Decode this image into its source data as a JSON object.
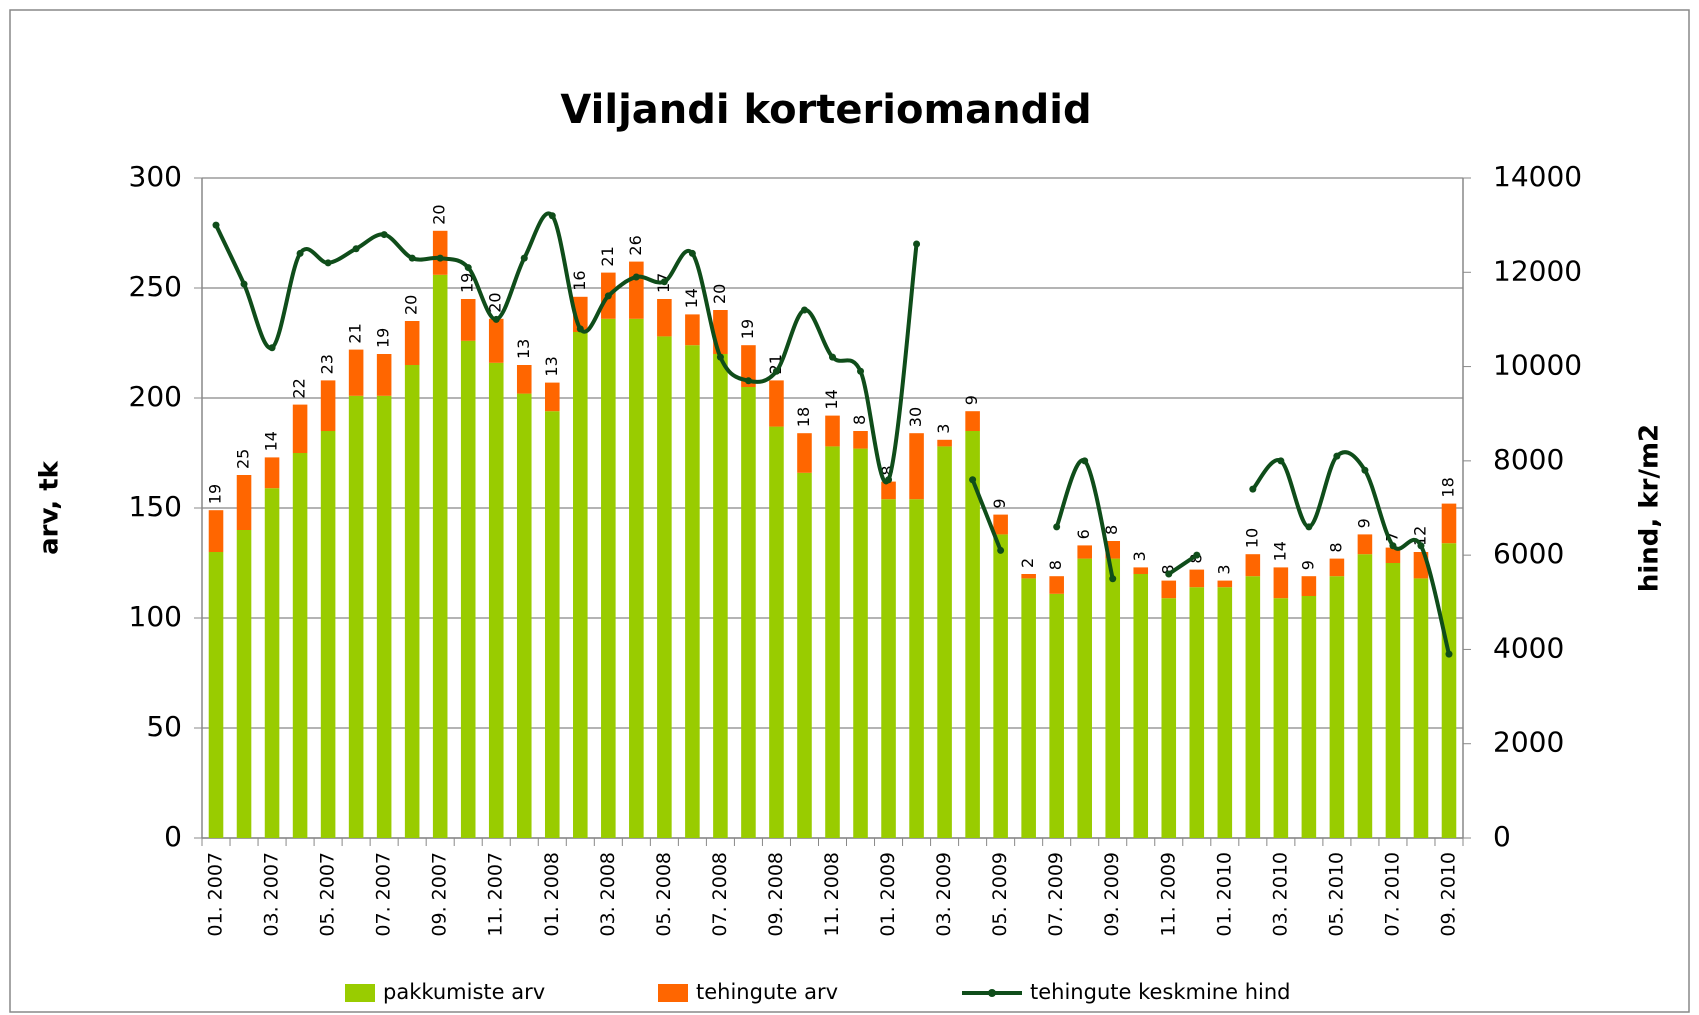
{
  "chart_data": {
    "type": "bar",
    "title": "Viljandi korteriomandid",
    "y_label": "arv, tk",
    "y2_label": "hind, kr/m2",
    "stacked": true,
    "grid": true,
    "legend": "bottom",
    "categories": [
      "01. 2007",
      null,
      "03. 2007",
      null,
      "05. 2007",
      null,
      "07. 2007",
      null,
      "09. 2007",
      null,
      "11. 2007",
      null,
      "01. 2008",
      null,
      "03. 2008",
      null,
      "05. 2008",
      null,
      "07. 2008",
      null,
      "09. 2008",
      null,
      "11. 2008",
      null,
      "01. 2009",
      null,
      "03. 2009",
      null,
      "05. 2009",
      null,
      "07. 2009",
      null,
      "09. 2009",
      null,
      "11. 2009",
      null,
      "01. 2010",
      null,
      "03. 2010",
      null,
      "05. 2010",
      null,
      "07. 2010",
      null,
      "09. 2010"
    ],
    "series": [
      {
        "name": "pakkumiste arv",
        "color": "#99cc00",
        "values": [
          130,
          140,
          159,
          175,
          185,
          201,
          201,
          215,
          256,
          226,
          216,
          202,
          194,
          230,
          236,
          236,
          228,
          224,
          220,
          205,
          187,
          166,
          178,
          177,
          154,
          154,
          178,
          185,
          138,
          118,
          111,
          127,
          127,
          120,
          109,
          114,
          114,
          119,
          109,
          110,
          119,
          129,
          125,
          118,
          134
        ]
      },
      {
        "name": "tehingute arv",
        "color": "#ff6600",
        "values": [
          19,
          25,
          14,
          22,
          23,
          21,
          19,
          20,
          20,
          19,
          20,
          13,
          13,
          16,
          21,
          26,
          17,
          14,
          20,
          19,
          21,
          18,
          14,
          8,
          8,
          30,
          3,
          9,
          9,
          2,
          8,
          6,
          8,
          3,
          8,
          8,
          3,
          10,
          14,
          9,
          8,
          9,
          7,
          12,
          18
        ]
      },
      {
        "name": "tehingute keskmine hind",
        "color": "#0f4d1a",
        "type": "line",
        "axis": "y2",
        "values": [
          13000,
          11750,
          10400,
          12400,
          12200,
          12500,
          12800,
          12300,
          12300,
          12100,
          11000,
          12300,
          13200,
          10800,
          11500,
          11900,
          11800,
          12400,
          10200,
          9700,
          9900,
          11200,
          10200,
          9900,
          7600,
          12600,
          null,
          7600,
          6100,
          null,
          6600,
          8000,
          5500,
          null,
          5600,
          6000,
          null,
          7400,
          8000,
          6600,
          8100,
          7800,
          6200,
          6200,
          3900
        ]
      }
    ],
    "ylim": [
      0,
      300
    ],
    "yticks": [
      0,
      50,
      100,
      150,
      200,
      250,
      300
    ],
    "y2lim": [
      0,
      14000
    ],
    "y2ticks": [
      0,
      2000,
      4000,
      6000,
      8000,
      10000,
      12000,
      14000
    ]
  }
}
